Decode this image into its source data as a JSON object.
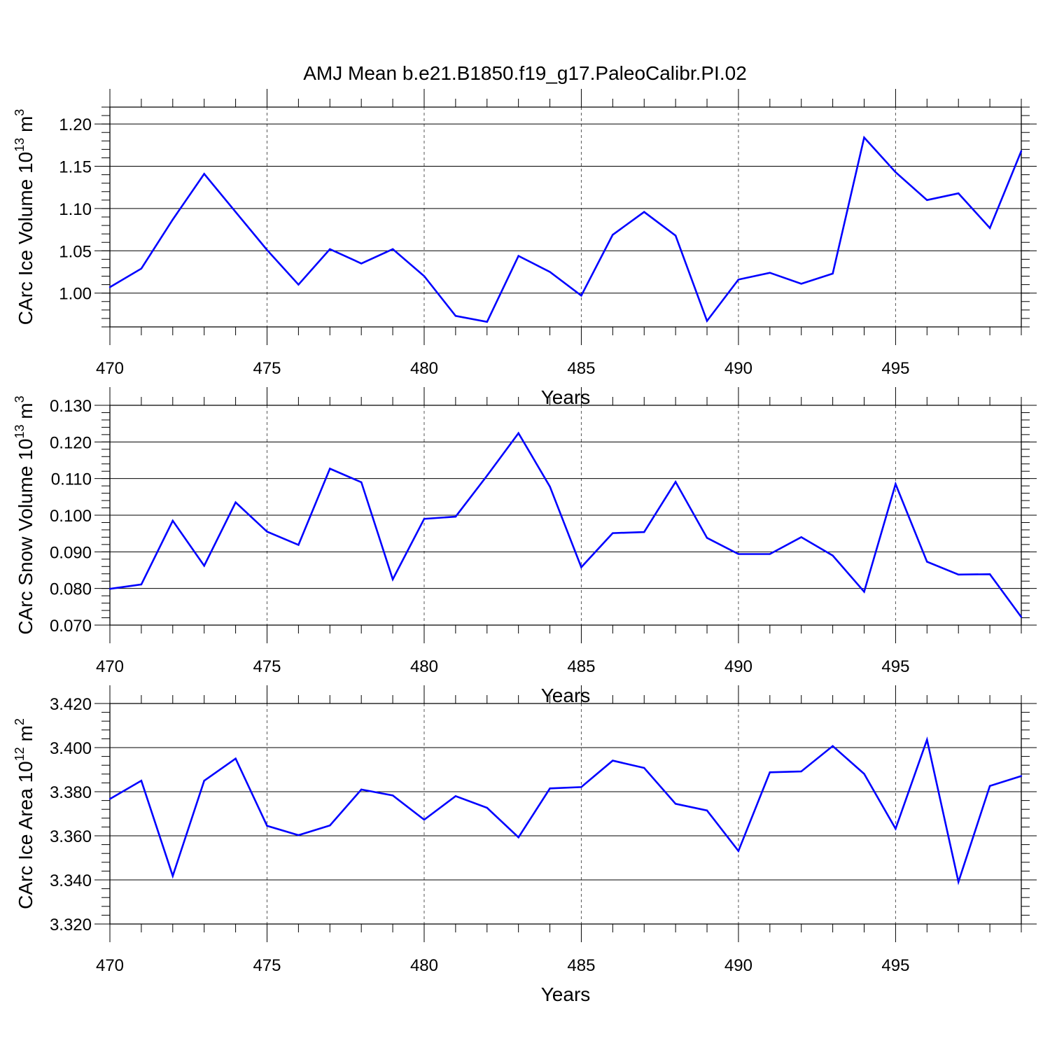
{
  "title": "AMJ Mean b.e21.B1850.f19_g17.PaleoCalibr.PI.02",
  "colors": {
    "line": "#0000ff",
    "axis": "#000000",
    "grid": "#555555"
  },
  "chart_data": [
    {
      "type": "line",
      "title": "",
      "xlabel": "Years",
      "ylabel": "CArc Ice Volume 10",
      "ylabel_exp": "13",
      "ylabel_unit": " m",
      "ylabel_unit_exp": "3",
      "xlim": [
        470,
        499
      ],
      "ylim": [
        0.96,
        1.22
      ],
      "xticks": [
        470,
        475,
        480,
        485,
        490,
        495
      ],
      "yticks": [
        1.0,
        1.05,
        1.1,
        1.15,
        1.2
      ],
      "ytick_labels": [
        "1.00",
        "1.05",
        "1.10",
        "1.15",
        "1.20"
      ],
      "grid": "vertical dashed at major x ticks",
      "x": [
        470,
        471,
        472,
        473,
        474,
        475,
        476,
        477,
        478,
        479,
        480,
        481,
        482,
        483,
        484,
        485,
        486,
        487,
        488,
        489,
        490,
        491,
        492,
        493,
        494,
        495,
        496,
        497,
        498,
        499
      ],
      "series": [
        {
          "values": [
            1.007,
            1.029,
            1.087,
            1.141,
            1.096,
            1.051,
            1.01,
            1.052,
            1.035,
            1.052,
            1.02,
            0.973,
            0.966,
            1.044,
            1.025,
            0.997,
            1.069,
            1.096,
            1.068,
            0.967,
            1.016,
            1.024,
            1.011,
            1.023,
            1.184,
            1.143,
            1.11,
            1.118,
            1.077,
            1.168
          ]
        }
      ]
    },
    {
      "type": "line",
      "title": "",
      "xlabel": "Years",
      "ylabel": "CArc Snow Volume 10",
      "ylabel_exp": "13",
      "ylabel_unit": " m",
      "ylabel_unit_exp": "3",
      "xlim": [
        470,
        499
      ],
      "ylim": [
        0.07,
        0.13
      ],
      "xticks": [
        470,
        475,
        480,
        485,
        490,
        495
      ],
      "yticks": [
        0.07,
        0.08,
        0.09,
        0.1,
        0.11,
        0.12,
        0.13
      ],
      "ytick_labels": [
        "0.070",
        "0.080",
        "0.090",
        "0.100",
        "0.110",
        "0.120",
        "0.130"
      ],
      "grid": "vertical dashed at major x ticks",
      "x": [
        470,
        471,
        472,
        473,
        474,
        475,
        476,
        477,
        478,
        479,
        480,
        481,
        482,
        483,
        484,
        485,
        486,
        487,
        488,
        489,
        490,
        491,
        492,
        493,
        494,
        495,
        496,
        497,
        498,
        499
      ],
      "series": [
        {
          "values": [
            0.0799,
            0.0811,
            0.0985,
            0.0862,
            0.1035,
            0.0955,
            0.0919,
            0.1127,
            0.109,
            0.0825,
            0.099,
            0.0996,
            0.1108,
            0.1224,
            0.1078,
            0.0858,
            0.0951,
            0.0954,
            0.1091,
            0.0938,
            0.0894,
            0.0894,
            0.094,
            0.089,
            0.0791,
            0.1085,
            0.0873,
            0.0838,
            0.0839,
            0.0722
          ]
        }
      ]
    },
    {
      "type": "line",
      "title": "",
      "xlabel": "Years",
      "ylabel": "CArc Ice Area 10",
      "ylabel_exp": "12",
      "ylabel_unit": " m",
      "ylabel_unit_exp": "2",
      "xlim": [
        470,
        499
      ],
      "ylim": [
        3.32,
        3.42
      ],
      "xticks": [
        470,
        475,
        480,
        485,
        490,
        495
      ],
      "yticks": [
        3.32,
        3.34,
        3.36,
        3.38,
        3.4,
        3.42
      ],
      "ytick_labels": [
        "3.320",
        "3.340",
        "3.360",
        "3.380",
        "3.400",
        "3.420"
      ],
      "grid": "vertical dashed at major x ticks",
      "x": [
        470,
        471,
        472,
        473,
        474,
        475,
        476,
        477,
        478,
        479,
        480,
        481,
        482,
        483,
        484,
        485,
        486,
        487,
        488,
        489,
        490,
        491,
        492,
        493,
        494,
        495,
        496,
        497,
        498,
        499
      ],
      "series": [
        {
          "values": [
            3.3767,
            3.385,
            3.3418,
            3.385,
            3.395,
            3.3645,
            3.3603,
            3.3647,
            3.381,
            3.3783,
            3.3673,
            3.378,
            3.3727,
            3.3593,
            3.3815,
            3.3821,
            3.3941,
            3.3908,
            3.3745,
            3.3715,
            3.3531,
            3.3888,
            3.3892,
            3.4007,
            3.3881,
            3.3632,
            3.4036,
            3.3391,
            3.3826,
            3.3871
          ]
        }
      ]
    }
  ]
}
